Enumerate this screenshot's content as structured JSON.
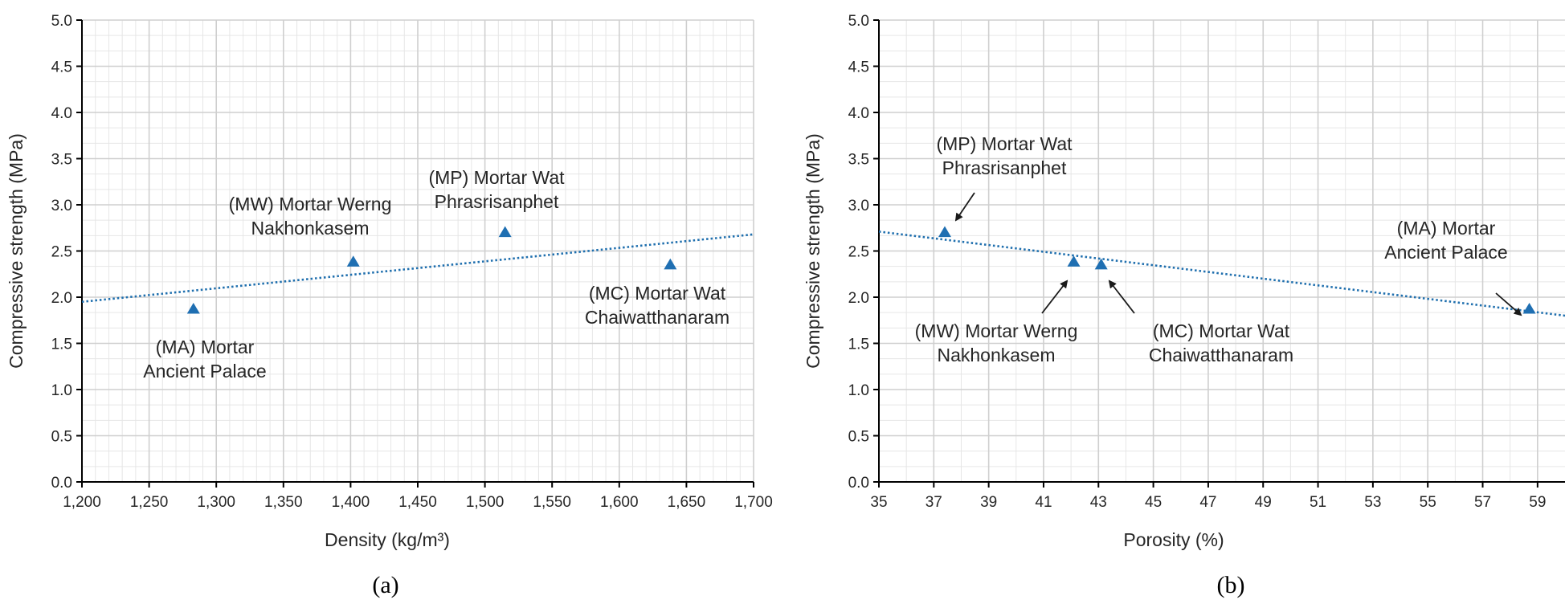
{
  "chart_data": [
    {
      "type": "scatter",
      "panel_label": "(a)",
      "title": "",
      "xlabel": "Density (kg/m³)",
      "ylabel": "Compressive strength (MPa)",
      "xlim": [
        1200,
        1700
      ],
      "ylim": [
        0,
        5
      ],
      "x_ticks": [
        1200,
        1250,
        1300,
        1350,
        1400,
        1450,
        1500,
        1550,
        1600,
        1650,
        1700
      ],
      "x_tick_labels": [
        "1,200",
        "1,250",
        "1,300",
        "1,350",
        "1,400",
        "1,450",
        "1,500",
        "1,550",
        "1,600",
        "1,650",
        "1,700"
      ],
      "y_ticks": [
        0,
        0.5,
        1,
        1.5,
        2,
        2.5,
        3,
        3.5,
        4,
        4.5,
        5
      ],
      "y_tick_labels": [
        "0.0",
        "0.5",
        "1.0",
        "1.5",
        "2.0",
        "2.5",
        "3.0",
        "3.5",
        "4.0",
        "4.5",
        "5.0"
      ],
      "grid": true,
      "points": [
        {
          "id": "MA",
          "x": 1283,
          "y": 1.87
        },
        {
          "id": "MW",
          "x": 1402,
          "y": 2.38
        },
        {
          "id": "MP",
          "x": 1515,
          "y": 2.7
        },
        {
          "id": "MC",
          "x": 1638,
          "y": 2.35
        }
      ],
      "trendline": {
        "style": "dotted",
        "x": [
          1200,
          1700
        ],
        "y": [
          1.95,
          2.68
        ]
      },
      "annotations": [
        {
          "point": "MA",
          "lines": [
            "(MA) Mortar",
            "Ancient Palace"
          ],
          "arrow": false
        },
        {
          "point": "MW",
          "lines": [
            "(MW) Mortar Werng",
            "Nakhonkasem"
          ],
          "arrow": false
        },
        {
          "point": "MP",
          "lines": [
            "(MP) Mortar Wat",
            "Phrasrisanphet"
          ],
          "arrow": false
        },
        {
          "point": "MC",
          "lines": [
            "(MC) Mortar Wat",
            "Chaiwatthanaram"
          ],
          "arrow": false
        }
      ]
    },
    {
      "type": "scatter",
      "panel_label": "(b)",
      "title": "",
      "xlabel": "Porosity (%)",
      "ylabel": "Compressive strength (MPa)",
      "xlim": [
        35,
        60
      ],
      "ylim": [
        0,
        5
      ],
      "x_ticks": [
        35,
        37,
        39,
        41,
        43,
        45,
        47,
        49,
        51,
        53,
        55,
        57,
        59
      ],
      "x_tick_labels": [
        "35",
        "37",
        "39",
        "41",
        "43",
        "45",
        "47",
        "49",
        "51",
        "53",
        "55",
        "57",
        "59"
      ],
      "y_ticks": [
        0,
        0.5,
        1,
        1.5,
        2,
        2.5,
        3,
        3.5,
        4,
        4.5,
        5
      ],
      "y_tick_labels": [
        "0.0",
        "0.5",
        "1.0",
        "1.5",
        "2.0",
        "2.5",
        "3.0",
        "3.5",
        "4.0",
        "4.5",
        "5.0"
      ],
      "grid": true,
      "points": [
        {
          "id": "MP",
          "x": 37.4,
          "y": 2.7
        },
        {
          "id": "MW",
          "x": 42.1,
          "y": 2.38
        },
        {
          "id": "MC",
          "x": 43.1,
          "y": 2.35
        },
        {
          "id": "MA",
          "x": 58.7,
          "y": 1.87
        }
      ],
      "trendline": {
        "style": "dotted",
        "x": [
          35,
          60
        ],
        "y": [
          2.71,
          1.8
        ]
      },
      "annotations": [
        {
          "point": "MP",
          "lines": [
            "(MP) Mortar Wat",
            "Phrasrisanphet"
          ],
          "arrow": true
        },
        {
          "point": "MW",
          "lines": [
            "(MW) Mortar Werng",
            "Nakhonkasem"
          ],
          "arrow": true
        },
        {
          "point": "MC",
          "lines": [
            "(MC) Mortar Wat",
            "Chaiwatthanaram"
          ],
          "arrow": true
        },
        {
          "point": "MA",
          "lines": [
            "(MA) Mortar",
            "Ancient Palace"
          ],
          "arrow": true
        }
      ]
    }
  ]
}
